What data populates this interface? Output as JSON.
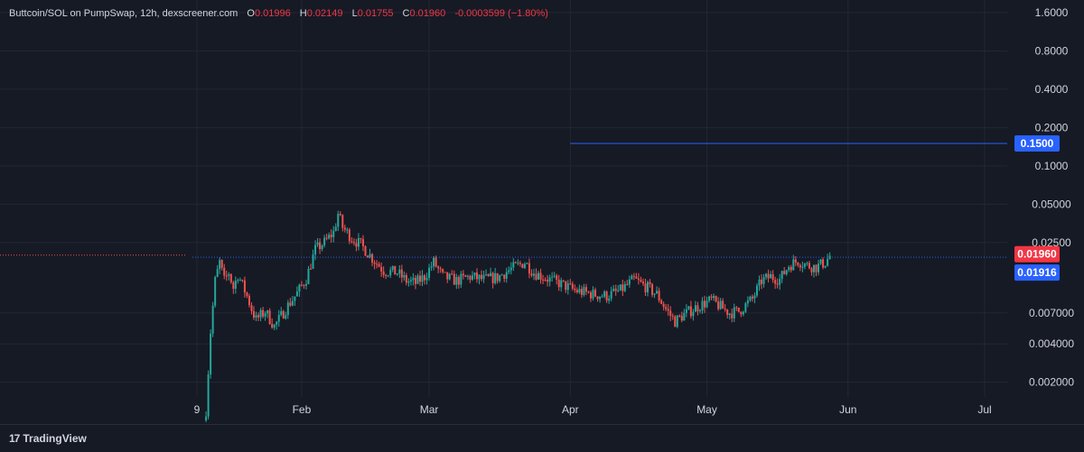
{
  "header": {
    "symbol": "Buttcoin/SOL on PumpSwap, 12h, dexscreener.com",
    "open_label": "O",
    "open_value": "0.01996",
    "high_label": "H",
    "high_value": "0.02149",
    "low_label": "L",
    "low_value": "0.01755",
    "close_label": "C",
    "close_value": "0.01960",
    "change_value": "-0.0003599 (−1.80%)"
  },
  "footer": {
    "brand": "TradingView",
    "brand_icon": "tradingview-logo-icon"
  },
  "colors": {
    "background": "#161a25",
    "grid": "#232734",
    "up": "#26a69a",
    "down": "#ef5350",
    "last_price_badge": "#f23645",
    "line_badge": "#2962ff",
    "text": "#d1d4dc"
  },
  "chart_data": {
    "type": "candlestick",
    "y_scale": "log",
    "ylim": [
      0.0013,
      1.65
    ],
    "y_ticks": [
      "1.6000",
      "0.8000",
      "0.4000",
      "0.2000",
      "0.1000",
      "0.05000",
      "0.02500",
      "0.007000",
      "0.004000",
      "0.002000"
    ],
    "x_ticks": [
      {
        "label": "9",
        "date": "2025-01-09"
      },
      {
        "label": "Feb",
        "date": "2025-02-01"
      },
      {
        "label": "Mar",
        "date": "2025-03-01"
      },
      {
        "label": "Apr",
        "date": "2025-04-01"
      },
      {
        "label": "May",
        "date": "2025-05-01"
      },
      {
        "label": "Jun",
        "date": "2025-06-01"
      },
      {
        "label": "Jul",
        "date": "2025-07-01"
      }
    ],
    "grid": true,
    "last_price": {
      "value": 0.0196,
      "label": "0.01960"
    },
    "horizontal_lines": [
      {
        "value": 0.15,
        "label": "0.1500",
        "style": "solid",
        "start_date": "2025-04-01"
      },
      {
        "value": 0.01916,
        "label": "0.01916",
        "style": "dotted",
        "start_date": "2025-01-08"
      }
    ],
    "close_path": [
      [
        "2025-01-11",
        0.0012
      ],
      [
        "2025-01-12",
        0.005
      ],
      [
        "2025-01-13",
        0.0125
      ],
      [
        "2025-01-14",
        0.0175
      ],
      [
        "2025-01-15",
        0.0125
      ],
      [
        "2025-01-16",
        0.0145
      ],
      [
        "2025-01-17",
        0.011
      ],
      [
        "2025-01-18",
        0.014
      ],
      [
        "2025-01-20",
        0.0095
      ],
      [
        "2025-01-21",
        0.0075
      ],
      [
        "2025-01-22",
        0.0062
      ],
      [
        "2025-01-24",
        0.0072
      ],
      [
        "2025-01-26",
        0.0055
      ],
      [
        "2025-01-27",
        0.0062
      ],
      [
        "2025-01-29",
        0.008
      ],
      [
        "2025-01-31",
        0.01
      ],
      [
        "2025-02-02",
        0.013
      ],
      [
        "2025-02-04",
        0.022
      ],
      [
        "2025-02-06",
        0.025
      ],
      [
        "2025-02-08",
        0.03
      ],
      [
        "2025-02-09",
        0.042
      ],
      [
        "2025-02-10",
        0.033
      ],
      [
        "2025-02-12",
        0.027
      ],
      [
        "2025-02-14",
        0.024
      ],
      [
        "2025-02-17",
        0.018
      ],
      [
        "2025-02-19",
        0.015
      ],
      [
        "2025-02-22",
        0.0145
      ],
      [
        "2025-02-24",
        0.0125
      ],
      [
        "2025-02-26",
        0.012
      ],
      [
        "2025-02-28",
        0.0135
      ],
      [
        "2025-03-02",
        0.0175
      ],
      [
        "2025-03-04",
        0.0135
      ],
      [
        "2025-03-07",
        0.0125
      ],
      [
        "2025-03-10",
        0.0135
      ],
      [
        "2025-03-13",
        0.0128
      ],
      [
        "2025-03-16",
        0.0133
      ],
      [
        "2025-03-19",
        0.0155
      ],
      [
        "2025-03-22",
        0.0175
      ],
      [
        "2025-03-24",
        0.0145
      ],
      [
        "2025-03-27",
        0.013
      ],
      [
        "2025-03-30",
        0.0118
      ],
      [
        "2025-04-02",
        0.0105
      ],
      [
        "2025-04-06",
        0.0098
      ],
      [
        "2025-04-09",
        0.0095
      ],
      [
        "2025-04-12",
        0.0105
      ],
      [
        "2025-04-15",
        0.0128
      ],
      [
        "2025-04-18",
        0.011
      ],
      [
        "2025-04-20",
        0.0098
      ],
      [
        "2025-04-22",
        0.0075
      ],
      [
        "2025-04-24",
        0.006
      ],
      [
        "2025-04-26",
        0.0068
      ],
      [
        "2025-04-28",
        0.0075
      ],
      [
        "2025-04-30",
        0.0082
      ],
      [
        "2025-05-02",
        0.0088
      ],
      [
        "2025-05-04",
        0.0078
      ],
      [
        "2025-05-06",
        0.007
      ],
      [
        "2025-05-08",
        0.0072
      ],
      [
        "2025-05-11",
        0.009
      ],
      [
        "2025-05-13",
        0.0125
      ],
      [
        "2025-05-15",
        0.0135
      ],
      [
        "2025-05-17",
        0.0128
      ],
      [
        "2025-05-19",
        0.0165
      ],
      [
        "2025-05-21",
        0.018
      ],
      [
        "2025-05-23",
        0.0165
      ],
      [
        "2025-05-25",
        0.016
      ],
      [
        "2025-05-27",
        0.0175
      ],
      [
        "2025-05-28",
        0.0196
      ]
    ]
  }
}
